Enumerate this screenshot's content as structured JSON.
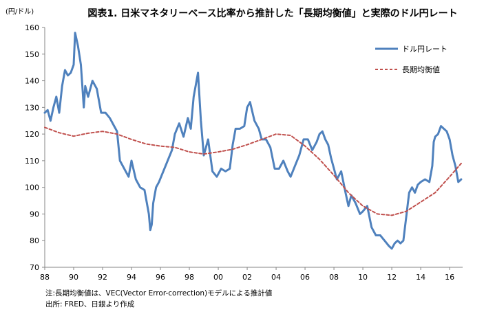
{
  "chart_data": {
    "type": "line",
    "title": "図表1. 日米マネタリーベース比率から推計した「長期均衡値」と実際のドル円レート",
    "ylabel": "(円/ドル)",
    "xlabel": "",
    "ylim": [
      70,
      160
    ],
    "yticks": [
      70,
      80,
      90,
      100,
      110,
      120,
      130,
      140,
      150,
      160
    ],
    "xlim": [
      1988,
      2016.9
    ],
    "xticks": [
      1988,
      1990,
      1992,
      1994,
      1996,
      1998,
      2000,
      2002,
      2004,
      2006,
      2008,
      2010,
      2012,
      2014,
      2016
    ],
    "xtick_labels": [
      "88",
      "90",
      "92",
      "94",
      "96",
      "98",
      "00",
      "02",
      "04",
      "06",
      "08",
      "10",
      "12",
      "14",
      "16"
    ],
    "grid": false,
    "legend_position": "top-right",
    "series": [
      {
        "name": "ドル円レート",
        "color": "#4f81bd",
        "style": "solid",
        "x": [
          1988.0,
          1988.2,
          1988.4,
          1988.6,
          1988.8,
          1989.0,
          1989.2,
          1989.4,
          1989.6,
          1989.8,
          1990.0,
          1990.1,
          1990.3,
          1990.5,
          1990.7,
          1990.8,
          1991.0,
          1991.3,
          1991.6,
          1991.9,
          1992.2,
          1992.5,
          1992.8,
          1993.0,
          1993.2,
          1993.4,
          1993.6,
          1993.8,
          1994.0,
          1994.3,
          1994.6,
          1994.9,
          1995.0,
          1995.2,
          1995.3,
          1995.4,
          1995.5,
          1995.7,
          1995.9,
          1996.2,
          1996.5,
          1996.8,
          1997.0,
          1997.3,
          1997.6,
          1997.9,
          1998.1,
          1998.3,
          1998.5,
          1998.6,
          1998.8,
          1999.0,
          1999.3,
          1999.6,
          1999.9,
          2000.2,
          2000.5,
          2000.8,
          2001.0,
          2001.2,
          2001.5,
          2001.8,
          2002.0,
          2002.2,
          2002.5,
          2002.8,
          2003.0,
          2003.3,
          2003.6,
          2003.9,
          2004.2,
          2004.5,
          2004.8,
          2005.0,
          2005.3,
          2005.6,
          2005.9,
          2006.2,
          2006.5,
          2006.8,
          2007.0,
          2007.2,
          2007.4,
          2007.6,
          2007.8,
          2008.0,
          2008.2,
          2008.5,
          2008.8,
          2009.0,
          2009.2,
          2009.5,
          2009.8,
          2010.0,
          2010.3,
          2010.6,
          2010.9,
          2011.2,
          2011.5,
          2011.8,
          2012.0,
          2012.2,
          2012.4,
          2012.6,
          2012.8,
          2013.0,
          2013.2,
          2013.4,
          2013.6,
          2013.8,
          2014.0,
          2014.3,
          2014.6,
          2014.8,
          2014.9,
          2015.0,
          2015.2,
          2015.4,
          2015.6,
          2015.8,
          2016.0,
          2016.2,
          2016.4,
          2016.6,
          2016.8
        ],
        "values": [
          128,
          129,
          125,
          130,
          134,
          128,
          138,
          144,
          142,
          143,
          146,
          158,
          153,
          146,
          130,
          138,
          134,
          140,
          137,
          128,
          128,
          126,
          123,
          121,
          110,
          108,
          106,
          104,
          110,
          103,
          100,
          99,
          96,
          90,
          84,
          86,
          94,
          100,
          102,
          106,
          110,
          114,
          120,
          124,
          119,
          126,
          122,
          134,
          140,
          143,
          125,
          112,
          118,
          106,
          104,
          107,
          106,
          107,
          116,
          122,
          122,
          123,
          130,
          132,
          125,
          122,
          118,
          118,
          115,
          107,
          107,
          110,
          106,
          104,
          108,
          112,
          118,
          118,
          114,
          117,
          120,
          121,
          118,
          116,
          111,
          107,
          103,
          106,
          98,
          93,
          97,
          94,
          90,
          91,
          93,
          85,
          82,
          82,
          80,
          78,
          77,
          79,
          80,
          79,
          80,
          89,
          98,
          100,
          98,
          101,
          102,
          103,
          102,
          108,
          117,
          119,
          120,
          123,
          122,
          121,
          118,
          112,
          108,
          102,
          103
        ]
      },
      {
        "name": "長期均衡値",
        "color": "#c0504d",
        "style": "dashed",
        "x": [
          1988.0,
          1989.0,
          1990.0,
          1991.0,
          1992.0,
          1993.0,
          1994.0,
          1995.0,
          1996.0,
          1997.0,
          1998.0,
          1999.0,
          2000.0,
          2001.0,
          2002.0,
          2003.0,
          2004.0,
          2005.0,
          2006.0,
          2007.0,
          2008.0,
          2009.0,
          2010.0,
          2011.0,
          2012.0,
          2013.0,
          2014.0,
          2015.0,
          2016.0,
          2016.8
        ],
        "values": [
          122.5,
          120.5,
          119.2,
          120.3,
          121.0,
          120.0,
          118.0,
          116.3,
          115.5,
          115.0,
          113.3,
          112.5,
          113.3,
          114.3,
          116.0,
          118.0,
          120.0,
          119.5,
          115.5,
          110.5,
          104.5,
          98.0,
          93.0,
          90.0,
          89.5,
          91.0,
          94.5,
          98.0,
          104.0,
          109.0
        ]
      }
    ]
  },
  "notes": {
    "line1": "注:長期均衡値は、VEC(Vector Error-correction)モデルによる推計値",
    "line2": "出所: FRED、日銀より作成"
  }
}
